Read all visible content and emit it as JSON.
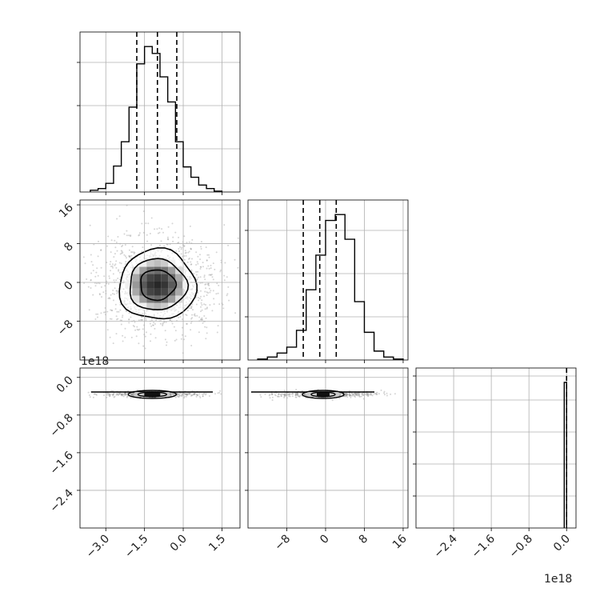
{
  "chart_data": {
    "type": "corner",
    "title": "",
    "grid": true,
    "n_params": 3,
    "colors": {
      "hist": "#000000",
      "quantile": "#000000",
      "points": "#888888",
      "grid": "#b0b0b0"
    },
    "quantiles_style": "dashed",
    "panels": [
      {
        "type": "histogram",
        "param": 0,
        "xlim": [
          -4.0,
          2.2
        ],
        "bins": [
          -3.6,
          -3.3,
          -3.0,
          -2.7,
          -2.4,
          -2.1,
          -1.8,
          -1.5,
          -1.2,
          -0.9,
          -0.6,
          -0.3,
          0.0,
          0.3,
          0.6,
          0.9,
          1.2,
          1.5
        ],
        "counts": [
          2,
          4,
          10,
          30,
          58,
          98,
          148,
          168,
          160,
          133,
          104,
          58,
          29,
          17,
          8,
          4,
          1
        ],
        "quantiles": [
          -1.8,
          -1.0,
          -0.25
        ]
      },
      {
        "type": "histogram",
        "param": 1,
        "xlim": [
          -16,
          17
        ],
        "bins": [
          -14,
          -12,
          -10,
          -8,
          -6,
          -4,
          -2,
          0,
          2,
          4,
          6,
          8,
          10,
          12,
          14,
          16
        ],
        "counts": [
          1,
          3,
          7,
          13,
          30,
          71,
          106,
          141,
          147,
          122,
          59,
          28,
          9,
          3,
          1
        ],
        "quantiles": [
          -4.6,
          -1.2,
          2.2
        ]
      },
      {
        "type": "histogram",
        "param": 2,
        "xlim": [
          -3.2,
          0.2
        ],
        "bins": [
          -0.05,
          0.0
        ],
        "counts": [
          1
        ],
        "quantiles": [
          0.0
        ],
        "offset_label": "1e18"
      },
      {
        "type": "2d",
        "x_param": 0,
        "y_param": 1,
        "xlim": [
          -4.0,
          2.2
        ],
        "ylim": [
          -16,
          17
        ],
        "center": [
          -1.0,
          -0.5
        ],
        "sigma": [
          1.0,
          4.2
        ],
        "contour_levels": [
          0.39,
          0.86,
          0.99
        ]
      },
      {
        "type": "2d",
        "x_param": 0,
        "y_param": 2,
        "xlim": [
          -4.0,
          2.2
        ],
        "ylim": [
          -3.2,
          0.2
        ],
        "center": [
          -1.2,
          -0.025
        ],
        "sigma": [
          1.0,
          0.02
        ],
        "contour_levels": [
          0.39,
          0.86,
          0.99
        ]
      },
      {
        "type": "2d",
        "x_param": 1,
        "y_param": 2,
        "xlim": [
          -16,
          17
        ],
        "ylim": [
          -3.2,
          0.2
        ],
        "center": [
          -0.5,
          -0.025
        ],
        "sigma": [
          4.0,
          0.02
        ],
        "contour_levels": [
          0.39,
          0.86,
          0.99
        ]
      }
    ],
    "tick_labels": {
      "x0": [
        "−3.0",
        "−1.5",
        "0.0",
        "1.5"
      ],
      "x0_values": [
        -3.0,
        -1.5,
        0.0,
        1.5
      ],
      "x1": [
        "−8",
        "0",
        "8",
        "16"
      ],
      "x1_values": [
        -8,
        0,
        8,
        16
      ],
      "x2": [
        "−2.4",
        "−1.6",
        "−0.8",
        "0.0"
      ],
      "x2_values": [
        -2.4,
        -1.6,
        -0.8,
        0.0
      ],
      "y1": [
        "16",
        "8",
        "0",
        "−8"
      ],
      "y1_values": [
        16,
        8,
        0,
        -8
      ],
      "y2": [
        "0.0",
        "−0.8",
        "−1.6",
        "−2.4"
      ],
      "y2_values": [
        0.0,
        -0.8,
        -1.6,
        -2.4
      ]
    },
    "offset_labels": {
      "y2": "1e18",
      "x2": "1e18"
    }
  }
}
